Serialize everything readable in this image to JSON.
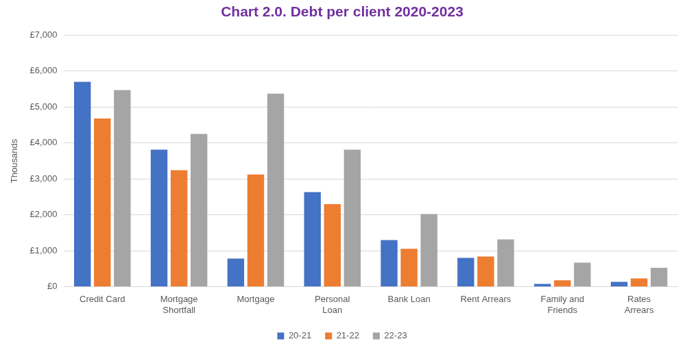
{
  "chart_data": {
    "type": "bar",
    "title": "Chart 2.0. Debt per client 2020-2023",
    "y_label": "Thousands",
    "categories": [
      "Credit Card",
      "Mortgage Shortfall",
      "Mortgage",
      "Personal Loan",
      "Bank Loan",
      "Rent Arrears",
      "Family and Friends",
      "Rates Arrears"
    ],
    "series": [
      {
        "name": "20-21",
        "color": "#4472c4",
        "values": [
          5700,
          3815,
          786,
          2635,
          1300,
          806,
          80,
          140
        ]
      },
      {
        "name": "21-22",
        "color": "#ed7d31",
        "values": [
          4680,
          3245,
          3125,
          2300,
          1060,
          845,
          180,
          235
        ]
      },
      {
        "name": "22-23",
        "color": "#a5a5a5",
        "values": [
          5470,
          4250,
          5370,
          3815,
          2025,
          1320,
          670,
          530
        ]
      }
    ],
    "ylim": [
      0,
      7000
    ],
    "yticks": [
      {
        "value": 0,
        "label": "£0"
      },
      {
        "value": 1000,
        "label": "£1,000"
      },
      {
        "value": 2000,
        "label": "£2,000"
      },
      {
        "value": 3000,
        "label": "£3,000"
      },
      {
        "value": 4000,
        "label": "£4,000"
      },
      {
        "value": 5000,
        "label": "£5,000"
      },
      {
        "value": 6000,
        "label": "£6,000"
      },
      {
        "value": 7000,
        "label": "£7,000"
      }
    ],
    "grid": true,
    "legend": "bottom"
  }
}
